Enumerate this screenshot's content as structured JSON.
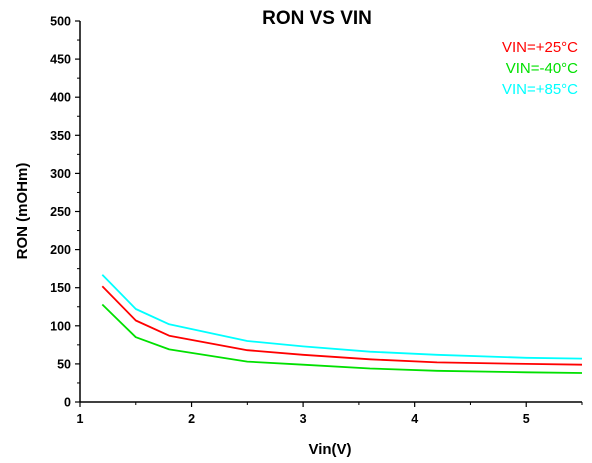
{
  "chart_data": {
    "type": "line",
    "title": "RON VS VIN",
    "xlabel": "Vin(V)",
    "ylabel": "RON (mOHm)",
    "xlim": [
      1,
      5.5
    ],
    "ylim": [
      0,
      500
    ],
    "x_ticks": [
      1,
      2,
      3,
      4,
      5
    ],
    "y_ticks": [
      0,
      50,
      100,
      150,
      200,
      250,
      300,
      350,
      400,
      450,
      500
    ],
    "grid": false,
    "legend_position": "top-right",
    "series": [
      {
        "name": "VIN=+25°C",
        "color": "#ff0000",
        "x": [
          1.2,
          1.5,
          1.8,
          2.5,
          3.0,
          3.6,
          4.2,
          5.0,
          5.5
        ],
        "y": [
          152,
          107,
          87,
          68,
          62,
          56,
          52,
          50,
          49
        ]
      },
      {
        "name": "VIN=-40°C",
        "color": "#00e000",
        "x": [
          1.2,
          1.5,
          1.8,
          2.5,
          3.0,
          3.6,
          4.2,
          5.0,
          5.5
        ],
        "y": [
          128,
          85,
          69,
          53,
          49,
          44,
          41,
          39,
          38
        ]
      },
      {
        "name": "VIN=+85°C",
        "color": "#00ffff",
        "x": [
          1.2,
          1.5,
          1.8,
          2.5,
          3.0,
          3.6,
          4.2,
          5.0,
          5.5
        ],
        "y": [
          167,
          122,
          102,
          80,
          73,
          66,
          62,
          58,
          57
        ]
      }
    ]
  }
}
